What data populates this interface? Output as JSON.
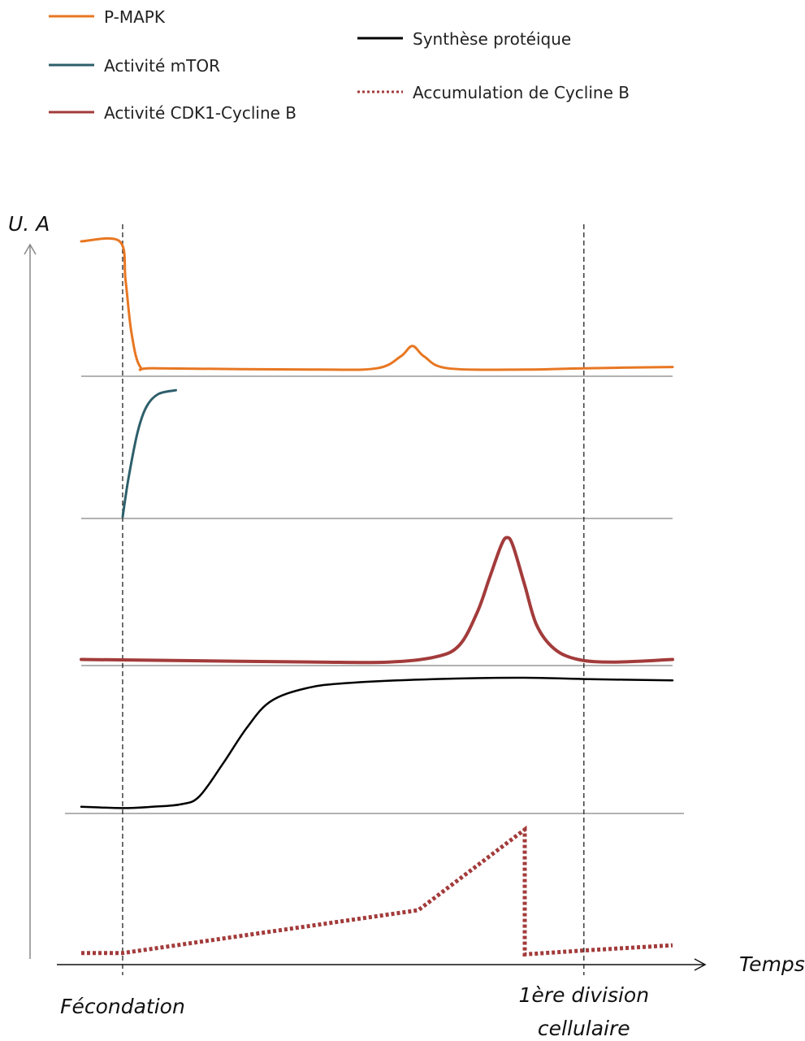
{
  "chart_data": {
    "type": "line",
    "ylabel": "U. A",
    "xlabel": "Temps",
    "xlim": [
      0,
      100
    ],
    "ylim": [
      0,
      1
    ],
    "grid": false,
    "legend_position": "top-left",
    "legend": [
      {
        "name": "P-MAPK",
        "color": "#e87722",
        "style": "solid"
      },
      {
        "name": "Activité mTOR",
        "color": "#2d5f6b",
        "style": "solid"
      },
      {
        "name": "Activité CDK1-Cycline B",
        "color": "#a33b3b",
        "style": "solid"
      },
      {
        "name": "Synthèse protéique",
        "color": "#000000",
        "style": "solid"
      },
      {
        "name": "Accumulation de Cycline B",
        "color": "#a33b3b",
        "style": "dotted"
      }
    ],
    "markers": [
      {
        "label": "Fécondation",
        "x": 7
      },
      {
        "label": "1ère division cellulaire",
        "label_lines": [
          "1ère division",
          "cellulaire"
        ],
        "x": 85
      }
    ],
    "series": [
      {
        "name": "P-MAPK",
        "points": [
          [
            0,
            1.0
          ],
          [
            6.5,
            1.0
          ],
          [
            7.5,
            0.7
          ],
          [
            8.5,
            0.3
          ],
          [
            10,
            0.04
          ],
          [
            13,
            0.03
          ],
          [
            40,
            0.02
          ],
          [
            50,
            0.03
          ],
          [
            54,
            0.12
          ],
          [
            56,
            0.2
          ],
          [
            58,
            0.12
          ],
          [
            62,
            0.03
          ],
          [
            75,
            0.02
          ],
          [
            85,
            0.03
          ],
          [
            100,
            0.04
          ]
        ]
      },
      {
        "name": "Activité mTOR",
        "points": [
          [
            7,
            0.0
          ],
          [
            8,
            0.3
          ],
          [
            9.5,
            0.65
          ],
          [
            11,
            0.85
          ],
          [
            13,
            0.95
          ],
          [
            16,
            0.98
          ]
        ]
      },
      {
        "name": "Activité CDK1-Cycline B",
        "points": [
          [
            0,
            0.04
          ],
          [
            20,
            0.03
          ],
          [
            40,
            0.02
          ],
          [
            52,
            0.02
          ],
          [
            60,
            0.06
          ],
          [
            64,
            0.15
          ],
          [
            67,
            0.4
          ],
          [
            69,
            0.65
          ],
          [
            71,
            0.9
          ],
          [
            72,
            0.96
          ],
          [
            73,
            0.9
          ],
          [
            75,
            0.6
          ],
          [
            77,
            0.3
          ],
          [
            80,
            0.12
          ],
          [
            84,
            0.04
          ],
          [
            90,
            0.02
          ],
          [
            100,
            0.04
          ]
        ]
      },
      {
        "name": "Synthèse protéique",
        "points": [
          [
            0,
            0.02
          ],
          [
            7,
            0.01
          ],
          [
            12,
            0.02
          ],
          [
            17,
            0.04
          ],
          [
            20,
            0.1
          ],
          [
            24,
            0.35
          ],
          [
            28,
            0.62
          ],
          [
            32,
            0.82
          ],
          [
            38,
            0.92
          ],
          [
            45,
            0.96
          ],
          [
            60,
            0.99
          ],
          [
            75,
            1.0
          ],
          [
            85,
            0.99
          ],
          [
            100,
            0.98
          ]
        ]
      },
      {
        "name": "Accumulation de Cycline B",
        "points": [
          [
            0,
            0.02
          ],
          [
            7,
            0.02
          ],
          [
            57,
            0.35
          ],
          [
            75,
            0.97
          ],
          [
            75,
            0.01
          ],
          [
            85,
            0.04
          ],
          [
            100,
            0.08
          ]
        ]
      }
    ]
  }
}
